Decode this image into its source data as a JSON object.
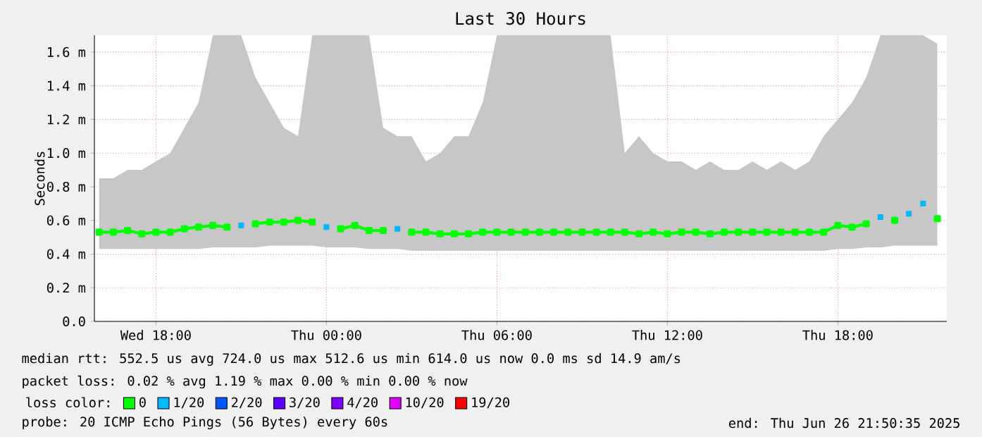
{
  "chart_data": {
    "type": "line",
    "title": "Last 30 Hours",
    "ylabel": "Seconds",
    "legend_title": "loss color:",
    "legend": "bottom",
    "grid": true,
    "marker": "square",
    "xlim": [
      "2025-06-25T15:50",
      "2025-06-26T21:50"
    ],
    "ylim": [
      0,
      1.7
    ],
    "xticks": [
      {
        "value": "2025-06-25T18:00",
        "label": "Wed 18:00"
      },
      {
        "value": "2025-06-26T00:00",
        "label": "Thu 00:00"
      },
      {
        "value": "2025-06-26T06:00",
        "label": "Thu 06:00"
      },
      {
        "value": "2025-06-26T12:00",
        "label": "Thu 12:00"
      },
      {
        "value": "2025-06-26T18:00",
        "label": "Thu 18:00"
      }
    ],
    "yticks": [
      {
        "value": 0,
        "label": "0.0"
      },
      {
        "value": 0.2,
        "label": "0.2 m"
      },
      {
        "value": 0.4,
        "label": "0.4 m"
      },
      {
        "value": 0.6,
        "label": "0.6 m"
      },
      {
        "value": 0.8,
        "label": "0.8 m"
      },
      {
        "value": 1.0,
        "label": "1.0 m"
      },
      {
        "value": 1.2,
        "label": "1.2 m"
      },
      {
        "value": 1.4,
        "label": "1.4 m"
      },
      {
        "value": 1.6,
        "label": "1.6 m"
      }
    ],
    "series": [
      {
        "name": "0",
        "color": "#00ff00",
        "x": [
          "2025-06-25T16:00",
          "2025-06-25T16:30",
          "2025-06-25T17:00",
          "2025-06-25T17:30",
          "2025-06-25T18:00",
          "2025-06-25T18:30",
          "2025-06-25T19:00",
          "2025-06-25T19:30",
          "2025-06-25T20:00",
          "2025-06-25T20:30",
          "2025-06-25T21:00",
          "2025-06-25T21:30",
          "2025-06-25T22:00",
          "2025-06-25T22:30",
          "2025-06-25T23:00",
          "2025-06-25T23:30",
          "2025-06-26T00:00",
          "2025-06-26T00:30",
          "2025-06-26T01:00",
          "2025-06-26T01:30",
          "2025-06-26T02:00",
          "2025-06-26T02:30",
          "2025-06-26T03:00",
          "2025-06-26T03:30",
          "2025-06-26T04:00",
          "2025-06-26T04:30",
          "2025-06-26T05:00",
          "2025-06-26T05:30",
          "2025-06-26T06:00",
          "2025-06-26T06:30",
          "2025-06-26T07:00",
          "2025-06-26T07:30",
          "2025-06-26T08:00",
          "2025-06-26T08:30",
          "2025-06-26T09:00",
          "2025-06-26T09:30",
          "2025-06-26T10:00",
          "2025-06-26T10:30",
          "2025-06-26T11:00",
          "2025-06-26T11:30",
          "2025-06-26T12:00",
          "2025-06-26T12:30",
          "2025-06-26T13:00",
          "2025-06-26T13:30",
          "2025-06-26T14:00",
          "2025-06-26T14:30",
          "2025-06-26T15:00",
          "2025-06-26T15:30",
          "2025-06-26T16:00",
          "2025-06-26T16:30",
          "2025-06-26T17:00",
          "2025-06-26T17:30",
          "2025-06-26T18:00",
          "2025-06-26T18:30",
          "2025-06-26T19:00",
          "2025-06-26T19:30",
          "2025-06-26T20:00",
          "2025-06-26T20:30",
          "2025-06-26T21:00",
          "2025-06-26T21:30"
        ],
        "values": [
          0.53,
          0.53,
          0.54,
          0.52,
          0.53,
          0.53,
          0.55,
          0.56,
          0.57,
          0.56,
          null,
          0.58,
          0.59,
          0.59,
          0.6,
          0.59,
          null,
          0.55,
          0.57,
          0.54,
          0.54,
          null,
          0.53,
          0.53,
          0.52,
          0.52,
          0.52,
          0.53,
          0.53,
          0.53,
          0.53,
          0.53,
          0.53,
          0.53,
          0.53,
          0.53,
          0.53,
          0.53,
          0.52,
          0.53,
          0.52,
          0.53,
          0.53,
          0.52,
          0.53,
          0.53,
          0.53,
          0.53,
          0.53,
          0.53,
          0.53,
          0.53,
          0.57,
          0.56,
          0.58,
          null,
          0.6,
          null,
          null,
          0.61
        ],
        "lower": [
          0.43,
          0.43,
          0.43,
          0.43,
          0.43,
          0.43,
          0.43,
          0.43,
          0.44,
          0.44,
          0.44,
          0.44,
          0.45,
          0.45,
          0.45,
          0.45,
          0.44,
          0.44,
          0.44,
          0.43,
          0.43,
          0.43,
          0.42,
          0.42,
          0.42,
          0.42,
          0.42,
          0.42,
          0.42,
          0.42,
          0.42,
          0.42,
          0.42,
          0.42,
          0.42,
          0.42,
          0.42,
          0.42,
          0.42,
          0.42,
          0.42,
          0.42,
          0.42,
          0.42,
          0.42,
          0.42,
          0.42,
          0.42,
          0.42,
          0.42,
          0.42,
          0.42,
          0.43,
          0.43,
          0.44,
          0.44,
          0.45,
          0.45,
          0.45,
          0.45
        ],
        "upper": [
          0.85,
          0.85,
          0.9,
          0.9,
          0.95,
          1.0,
          1.15,
          1.3,
          1.7,
          1.7,
          1.7,
          1.45,
          1.3,
          1.15,
          1.1,
          1.7,
          1.7,
          1.7,
          1.7,
          1.7,
          1.15,
          1.1,
          1.1,
          0.95,
          1.0,
          1.1,
          1.1,
          1.3,
          1.7,
          1.7,
          1.7,
          1.7,
          1.7,
          1.7,
          1.7,
          1.7,
          1.7,
          1.0,
          1.1,
          1.0,
          0.95,
          0.95,
          0.9,
          0.95,
          0.9,
          0.9,
          0.95,
          0.9,
          0.95,
          0.9,
          0.95,
          1.1,
          1.2,
          1.3,
          1.45,
          1.7,
          1.7,
          1.7,
          1.7,
          1.65
        ]
      },
      {
        "name": "1/20",
        "color": "#00b8ff",
        "type": "scatter",
        "x": [
          "2025-06-25T21:00",
          "2025-06-26T00:00",
          "2025-06-26T02:30",
          "2025-06-26T19:30",
          "2025-06-26T20:30",
          "2025-06-26T21:00"
        ],
        "values": [
          0.57,
          0.56,
          0.55,
          0.62,
          0.64,
          0.7
        ]
      },
      {
        "name": "2/20",
        "color": "#0059ff",
        "type": "scatter"
      },
      {
        "name": "3/20",
        "color": "#5e00ff",
        "type": "scatter"
      },
      {
        "name": "4/20",
        "color": "#7e00ff",
        "type": "scatter"
      },
      {
        "name": "10/20",
        "color": "#dd00ff",
        "type": "scatter"
      },
      {
        "name": "19/20",
        "color": "#ff0000",
        "type": "scatter"
      }
    ],
    "annotations": [
      "median rtt: 552.5 us avg 724.0 us max 512.6 us min 614.0 us now 0.0 ms sd 14.9 am/s",
      "packet loss: 0.02 % avg 1.19 % max 0.00 % min 0.00 % now",
      "probe: 20 ICMP Echo Pings (56 Bytes) every 60s",
      "end: Thu Jun 26 21:50:35 2025"
    ]
  }
}
